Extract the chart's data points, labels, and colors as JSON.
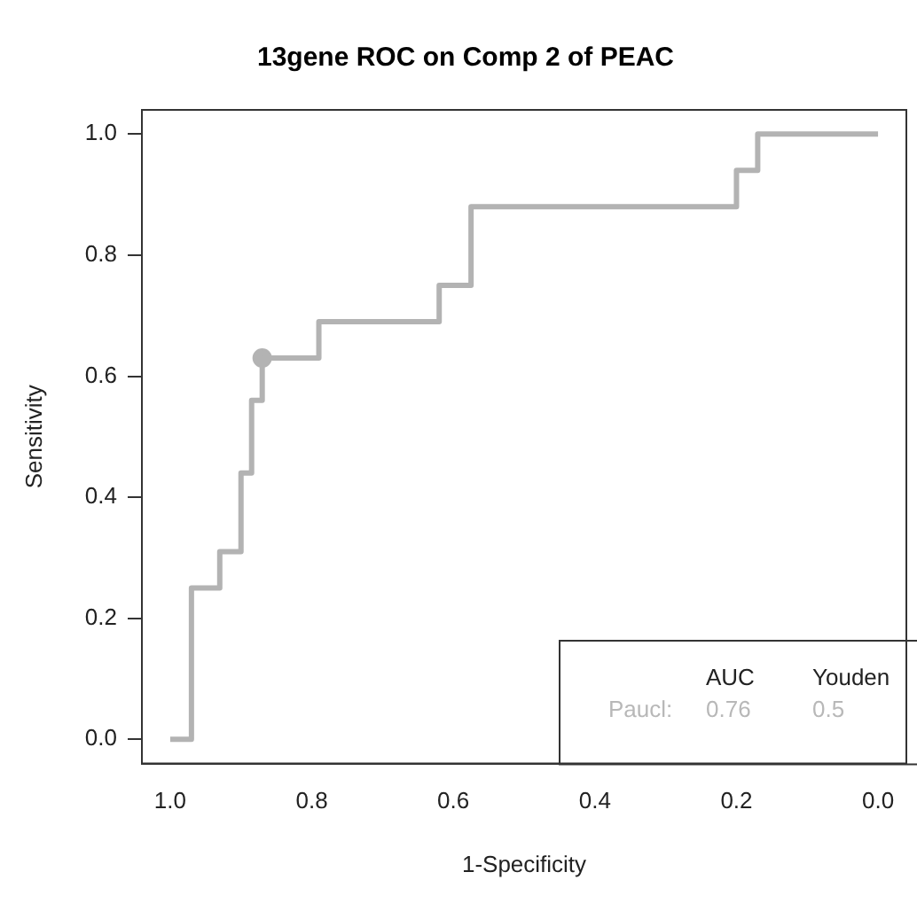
{
  "chart_data": {
    "type": "step",
    "title": "13gene ROC on Comp 2 of PEAC",
    "xlabel": "1-Specificity",
    "ylabel": "Sensitivity",
    "xlim": [
      1.04,
      -0.04
    ],
    "ylim": [
      -0.04,
      1.04
    ],
    "xticks": [
      {
        "value": 1,
        "label": "1.0"
      },
      0.8,
      0.6,
      0.4,
      0.2,
      {
        "value": 0,
        "label": "0.0"
      }
    ],
    "yticks": [
      {
        "value": 0,
        "label": "0.0"
      },
      0.2,
      0.4,
      0.6,
      0.8,
      {
        "value": 1,
        "label": "1.0"
      }
    ],
    "grid": false,
    "legend": false,
    "marker": "none",
    "line_style": "solid",
    "series": [
      {
        "color": "#b3b3b3",
        "x": [
          1.0,
          0.97,
          0.93,
          0.9,
          0.885,
          0.87,
          0.79,
          0.62,
          0.575,
          0.2,
          0.17,
          0.0
        ],
        "values": [
          0,
          0.25,
          0.31,
          0.44,
          0.56,
          0.63,
          0.69,
          0.75,
          0.88,
          0.94,
          1.0,
          1.0
        ]
      },
      {
        "type": "scatter",
        "marker": "circle",
        "color": "#b3b3b3",
        "x": [
          0.87
        ],
        "values": [
          0.63
        ]
      }
    ],
    "annotations": [
      "AUC",
      "Youden",
      "Paucl:",
      "0.76",
      "0.5"
    ]
  }
}
